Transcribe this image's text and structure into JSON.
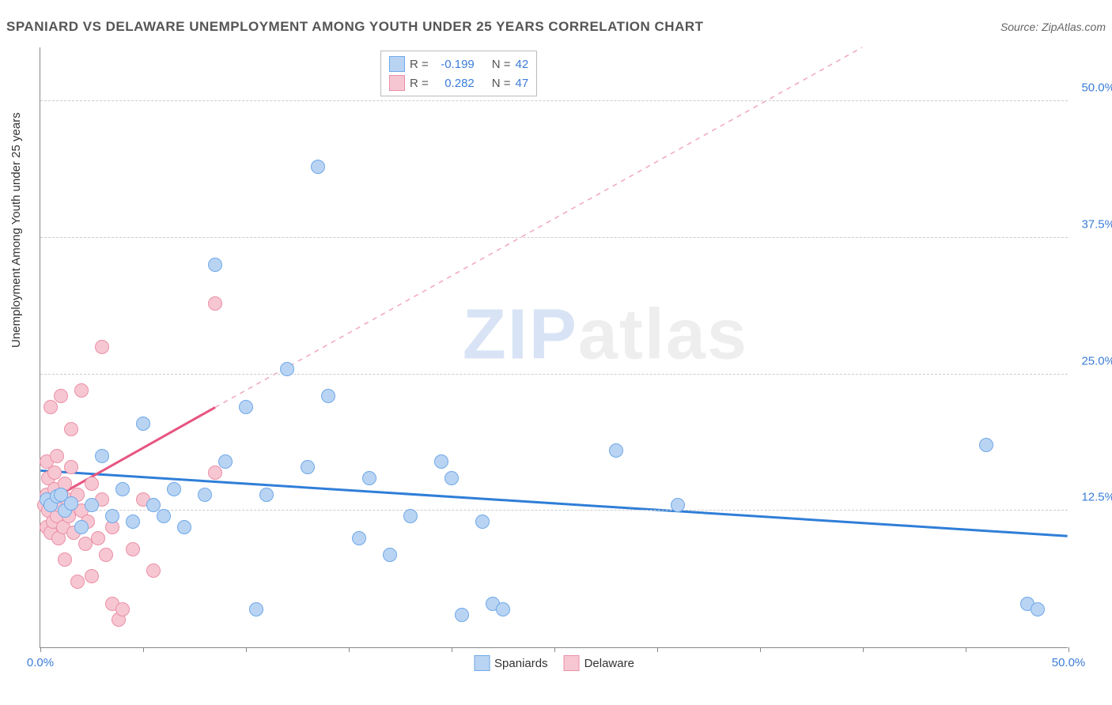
{
  "header": {
    "title": "SPANIARD VS DELAWARE UNEMPLOYMENT AMONG YOUTH UNDER 25 YEARS CORRELATION CHART",
    "source_prefix": "Source: ",
    "source": "ZipAtlas.com"
  },
  "chart": {
    "type": "scatter",
    "ylabel": "Unemployment Among Youth under 25 years",
    "xlim": [
      0,
      50
    ],
    "ylim": [
      0,
      55
    ],
    "xtick_vals": [
      0,
      5,
      10,
      15,
      20,
      25,
      30,
      35,
      40,
      45,
      50
    ],
    "xtick_labels": {
      "0": "0.0%",
      "50": "50.0%"
    },
    "ytick_vals": [
      12.5,
      25.0,
      37.5,
      50.0
    ],
    "ytick_labels": [
      "12.5%",
      "25.0%",
      "37.5%",
      "50.0%"
    ],
    "ytick_color": "#3b7dd8",
    "xtick_color": "#3b7dd8",
    "grid_color": "#cccccc",
    "background_color": "#ffffff",
    "marker_radius": 9,
    "marker_border_width": 1.5,
    "series": {
      "spaniards": {
        "label": "Spaniards",
        "fill": "#b9d4f3",
        "stroke": "#6fa8e8",
        "R": "-0.199",
        "N": "42",
        "trend": {
          "x1": 0,
          "y1": 16.2,
          "x2": 50,
          "y2": 10.2,
          "color": "#2f7ed8",
          "width": 3,
          "dash": "none"
        },
        "points": [
          [
            0.3,
            13.5
          ],
          [
            0.5,
            13.0
          ],
          [
            0.8,
            13.8
          ],
          [
            1.0,
            14.0
          ],
          [
            1.2,
            12.5
          ],
          [
            1.5,
            13.2
          ],
          [
            2.0,
            11.0
          ],
          [
            2.5,
            13.0
          ],
          [
            3.0,
            17.5
          ],
          [
            3.5,
            12.0
          ],
          [
            4.0,
            14.5
          ],
          [
            4.5,
            11.5
          ],
          [
            5.0,
            20.5
          ],
          [
            5.5,
            13.0
          ],
          [
            6.0,
            12.0
          ],
          [
            6.5,
            14.5
          ],
          [
            7.0,
            11.0
          ],
          [
            8.0,
            14.0
          ],
          [
            8.5,
            35.0
          ],
          [
            9.0,
            17.0
          ],
          [
            10.0,
            22.0
          ],
          [
            10.5,
            3.5
          ],
          [
            11.0,
            14.0
          ],
          [
            12.0,
            25.5
          ],
          [
            13.5,
            44.0
          ],
          [
            13.0,
            16.5
          ],
          [
            14.0,
            23.0
          ],
          [
            15.5,
            10.0
          ],
          [
            16.0,
            15.5
          ],
          [
            17.0,
            8.5
          ],
          [
            18.0,
            12.0
          ],
          [
            19.5,
            17.0
          ],
          [
            20.0,
            15.5
          ],
          [
            20.5,
            3.0
          ],
          [
            21.5,
            11.5
          ],
          [
            22.0,
            4.0
          ],
          [
            22.5,
            3.5
          ],
          [
            28.0,
            18.0
          ],
          [
            31.0,
            13.0
          ],
          [
            46.0,
            18.5
          ],
          [
            48.0,
            4.0
          ],
          [
            48.5,
            3.5
          ]
        ]
      },
      "delaware": {
        "label": "Delaware",
        "fill": "#f6c7d2",
        "stroke": "#eb8fa6",
        "R": "0.282",
        "N": "47",
        "trend_solid": {
          "x1": 0,
          "y1": 13.0,
          "x2": 8.5,
          "y2": 22.0,
          "color": "#e75480",
          "width": 3
        },
        "trend_dash": {
          "x1": 8.5,
          "y1": 22.0,
          "x2": 40,
          "y2": 55.0,
          "color": "#f1a7ba",
          "width": 1.5
        },
        "points": [
          [
            0.2,
            13.0
          ],
          [
            0.3,
            14.0
          ],
          [
            0.3,
            11.0
          ],
          [
            0.3,
            17.0
          ],
          [
            0.4,
            12.5
          ],
          [
            0.4,
            15.5
          ],
          [
            0.5,
            22.0
          ],
          [
            0.5,
            10.5
          ],
          [
            0.6,
            13.5
          ],
          [
            0.6,
            11.5
          ],
          [
            0.7,
            14.5
          ],
          [
            0.7,
            16.0
          ],
          [
            0.8,
            12.0
          ],
          [
            0.8,
            17.5
          ],
          [
            0.9,
            10.0
          ],
          [
            0.9,
            13.0
          ],
          [
            1.0,
            23.0
          ],
          [
            1.0,
            14.0
          ],
          [
            1.1,
            11.0
          ],
          [
            1.2,
            15.0
          ],
          [
            1.2,
            8.0
          ],
          [
            1.3,
            13.5
          ],
          [
            1.4,
            12.0
          ],
          [
            1.5,
            16.5
          ],
          [
            1.5,
            20.0
          ],
          [
            1.6,
            10.5
          ],
          [
            1.8,
            14.0
          ],
          [
            1.8,
            6.0
          ],
          [
            2.0,
            12.5
          ],
          [
            2.0,
            23.5
          ],
          [
            2.2,
            9.5
          ],
          [
            2.3,
            11.5
          ],
          [
            2.5,
            15.0
          ],
          [
            2.5,
            6.5
          ],
          [
            2.8,
            10.0
          ],
          [
            3.0,
            27.5
          ],
          [
            3.0,
            13.5
          ],
          [
            3.2,
            8.5
          ],
          [
            3.5,
            4.0
          ],
          [
            3.5,
            11.0
          ],
          [
            3.8,
            2.5
          ],
          [
            4.0,
            3.5
          ],
          [
            4.5,
            9.0
          ],
          [
            5.0,
            13.5
          ],
          [
            5.5,
            7.0
          ],
          [
            8.5,
            31.5
          ],
          [
            8.5,
            16.0
          ]
        ]
      }
    },
    "stat_box": {
      "label_color": "#555",
      "value_color": "#3b7dd8",
      "R_label": "R =",
      "N_label": "N ="
    },
    "watermark": {
      "text_z": "ZIP",
      "text_rest": "atlas"
    }
  }
}
